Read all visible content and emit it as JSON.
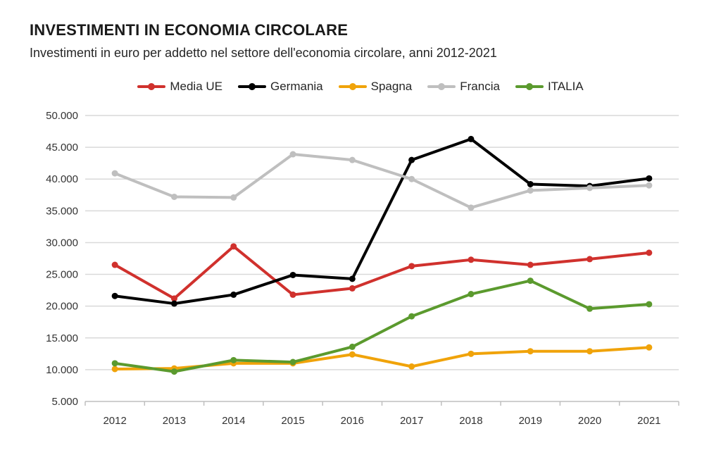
{
  "chart_data": {
    "type": "line",
    "title": "INVESTIMENTI IN ECONOMIA CIRCOLARE",
    "subtitle": "Investimenti in euro per addetto nel settore dell'economia circolare, anni 2012-2021",
    "xlabel": "",
    "ylabel": "",
    "categories": [
      "2012",
      "2013",
      "2014",
      "2015",
      "2016",
      "2017",
      "2018",
      "2019",
      "2020",
      "2021"
    ],
    "ylim": [
      5000,
      50000
    ],
    "yticks": [
      5000,
      10000,
      15000,
      20000,
      25000,
      30000,
      35000,
      40000,
      45000,
      50000
    ],
    "ytick_labels": [
      "5.000",
      "10.000",
      "15.000",
      "20.000",
      "25.000",
      "30.000",
      "35.000",
      "40.000",
      "45.000",
      "50.000"
    ],
    "grid": true,
    "legend_position": "top-center",
    "series": [
      {
        "name": "Media UE",
        "color": "#d0312d",
        "values": [
          26500,
          21200,
          29400,
          21800,
          22800,
          26300,
          27300,
          26500,
          27400,
          28400
        ]
      },
      {
        "name": "Germania",
        "color": "#000000",
        "values": [
          21600,
          20400,
          21800,
          24900,
          24300,
          43000,
          46300,
          39200,
          38900,
          40100
        ]
      },
      {
        "name": "Spagna",
        "color": "#f0a30a",
        "values": [
          10100,
          10200,
          11000,
          11000,
          12400,
          10500,
          12500,
          12900,
          12900,
          13500
        ]
      },
      {
        "name": "Francia",
        "color": "#bfbfbf",
        "values": [
          40900,
          37200,
          37100,
          43900,
          43000,
          40000,
          35500,
          38200,
          38600,
          39000
        ]
      },
      {
        "name": "ITALIA",
        "color": "#5b9a2e",
        "values": [
          11000,
          9700,
          11500,
          11200,
          13600,
          18400,
          21900,
          24000,
          19600,
          20300
        ]
      }
    ]
  }
}
